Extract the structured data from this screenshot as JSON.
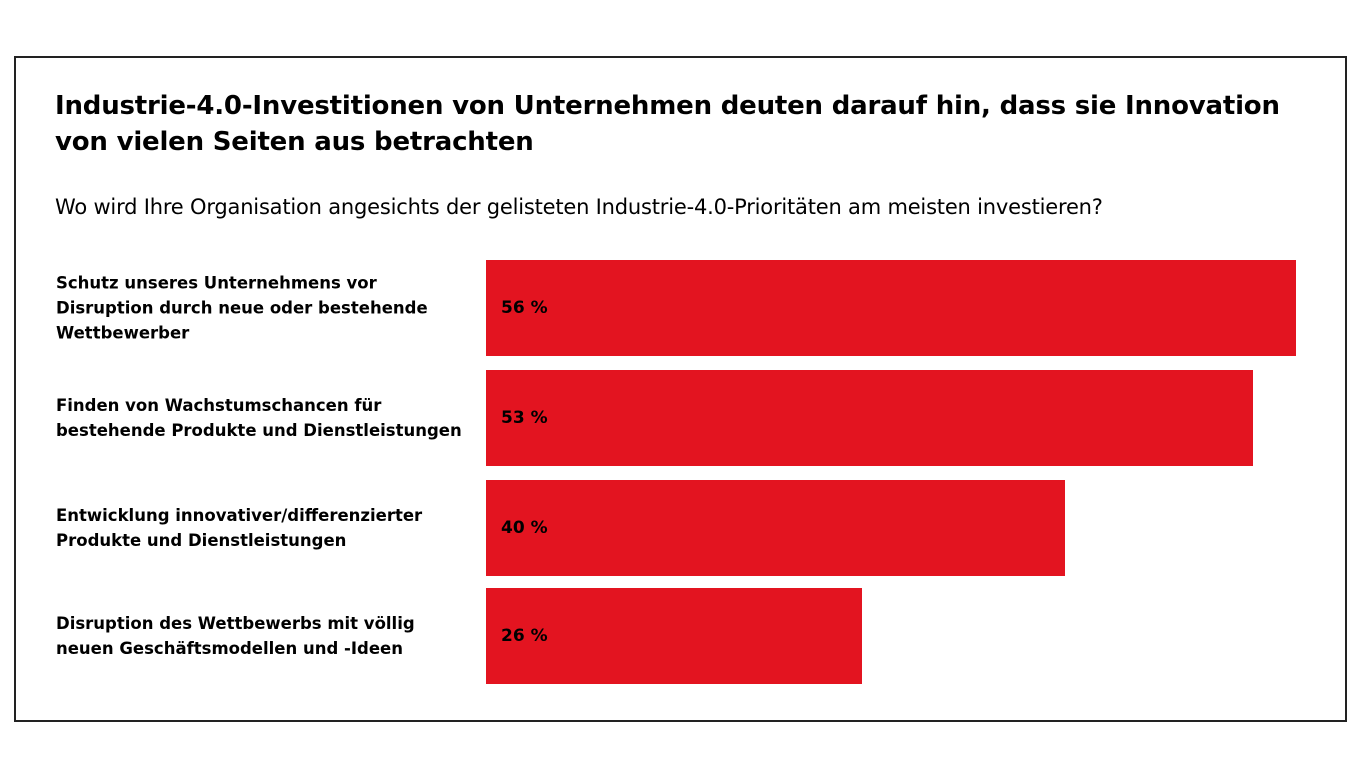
{
  "chart_data": {
    "type": "bar",
    "orientation": "horizontal",
    "title": "Industrie-4.0-Investitionen von Unternehmen deuten darauf hin, dass sie Innovation von vielen Seiten aus betrachten",
    "subtitle": "Wo wird Ihre Organisation angesichts der gelisteten Industrie-4.0-Prioritäten am meisten investieren?",
    "categories": [
      "Schutz unseres Unternehmens vor Disruption durch neue oder bestehende Wettbewerber",
      "Finden von Wachstumschancen für bestehende Produkte und Dienstleistungen",
      "Entwicklung innovativer/differenzierter Produkte und Dienstleistungen",
      "Disruption des Wettbewerbs mit völlig neuen Geschäftsmodellen und -Ideen"
    ],
    "values": [
      56,
      53,
      40,
      26
    ],
    "value_labels": [
      "56 %",
      "53 %",
      "40 %",
      "26 %"
    ],
    "unit": "%",
    "bar_color": "#e31420",
    "grid": false,
    "legend": "none"
  }
}
